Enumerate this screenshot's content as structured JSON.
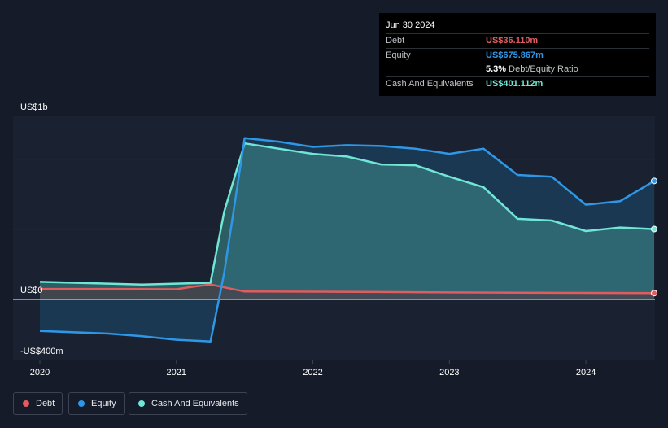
{
  "tooltip": {
    "date": "Jun 30 2024",
    "debt_label": "Debt",
    "debt_value": "US$36.110m",
    "equity_label": "Equity",
    "equity_value": "US$675.867m",
    "ratio_value": "5.3%",
    "ratio_label": "Debt/Equity Ratio",
    "cash_label": "Cash And Equivalents",
    "cash_value": "US$401.112m"
  },
  "legend": {
    "debt": "Debt",
    "equity": "Equity",
    "cash": "Cash And Equivalents"
  },
  "colors": {
    "debt": "#e05c5f",
    "equity": "#2e97e6",
    "cash": "#6fe6d6"
  },
  "chart_data": {
    "type": "area",
    "title": "",
    "units": "US$ millions",
    "ylim": [
      -400,
      1000
    ],
    "xlim": [
      2020.0,
      2024.5
    ],
    "y_ticks": [
      {
        "value": 1000,
        "label": "US$1b"
      },
      {
        "value": 0,
        "label": "US$0"
      },
      {
        "value": -400,
        "label": "-US$400m"
      }
    ],
    "x_ticks": [
      {
        "value": 2020,
        "label": "2020"
      },
      {
        "value": 2021,
        "label": "2021"
      },
      {
        "value": 2022,
        "label": "2022"
      },
      {
        "value": 2023,
        "label": "2023"
      },
      {
        "value": 2024,
        "label": "2024"
      }
    ],
    "grid": true,
    "legend_position": "bottom-left",
    "series": [
      {
        "key": "debt",
        "name": "Debt",
        "x": [
          2020.0,
          2020.5,
          2021.0,
          2021.1,
          2021.25,
          2021.5,
          2022.0,
          2022.5,
          2023.0,
          2023.5,
          2024.0,
          2024.5
        ],
        "y": [
          60,
          60,
          58,
          70,
          85,
          45,
          44,
          42,
          40,
          38,
          37,
          36.11
        ]
      },
      {
        "key": "equity",
        "name": "Equity",
        "x": [
          2020.0,
          2020.5,
          2020.75,
          2021.0,
          2021.25,
          2021.35,
          2021.5,
          2021.75,
          2022.0,
          2022.25,
          2022.5,
          2022.75,
          2023.0,
          2023.25,
          2023.5,
          2023.75,
          2024.0,
          2024.25,
          2024.5
        ],
        "y": [
          -180,
          -195,
          -210,
          -230,
          -240,
          150,
          920,
          900,
          870,
          880,
          875,
          860,
          830,
          860,
          710,
          700,
          540,
          560,
          675.867
        ]
      },
      {
        "key": "cash",
        "name": "Cash And Equivalents",
        "x": [
          2020.0,
          2020.5,
          2020.75,
          2021.0,
          2021.25,
          2021.35,
          2021.5,
          2021.75,
          2022.0,
          2022.25,
          2022.5,
          2022.75,
          2023.0,
          2023.25,
          2023.5,
          2023.75,
          2024.0,
          2024.25,
          2024.5
        ],
        "y": [
          100,
          90,
          85,
          90,
          95,
          500,
          890,
          860,
          830,
          815,
          770,
          765,
          700,
          640,
          460,
          450,
          390,
          410,
          401.112
        ]
      }
    ]
  }
}
